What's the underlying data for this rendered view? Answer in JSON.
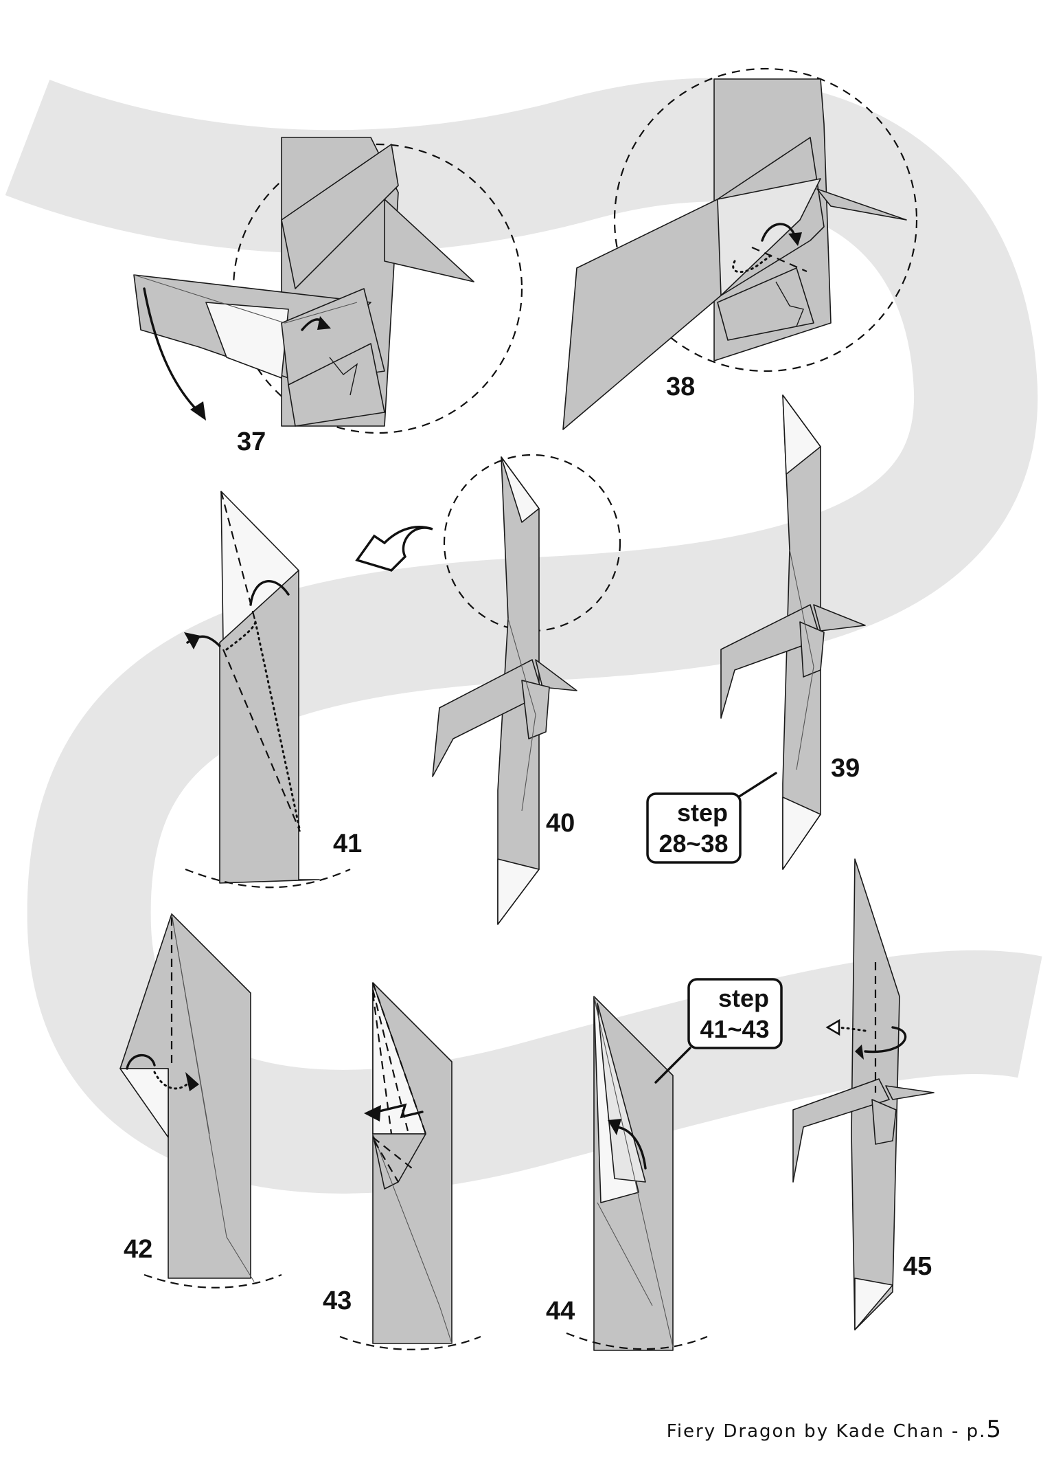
{
  "footer": {
    "credit": "Fiery Dragon by Kade Chan - p.",
    "page_number": "5"
  },
  "steps": {
    "s37": "37",
    "s38": "38",
    "s39": "39",
    "s40": "40",
    "s41": "41",
    "s42": "42",
    "s43": "43",
    "s44": "44",
    "s45": "45"
  },
  "callouts": {
    "repeat_a": {
      "line1": "step",
      "line2": "28~38"
    },
    "repeat_b": {
      "line1": "step",
      "line2": "41~43"
    }
  },
  "colors": {
    "background_band": "#e6e6e6",
    "paper": "#c3c3c3",
    "paper_light": "#e6e6e6",
    "ink": "#111111"
  }
}
